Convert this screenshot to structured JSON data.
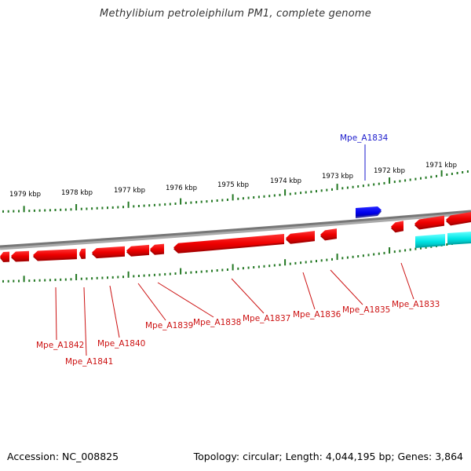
{
  "title": "Methylibium petroleiphilum PM1, complete genome",
  "footer": {
    "accession": "Accession: NC_008825",
    "summary": "Topology: circular; Length: 4,044,195 bp; Genes: 3,864"
  },
  "colors": {
    "forward_gene": "#0000ee",
    "reverse_gene": "#ee0000",
    "rna_feature": "#00e5e5",
    "ticks": "#227722",
    "backbone": "#888888",
    "label_forward": "#1a1acc",
    "label_reverse": "#cc1111"
  },
  "scale": {
    "ticks": [
      {
        "label": "1979 kbp"
      },
      {
        "label": "1978 kbp"
      },
      {
        "label": "1977 kbp"
      },
      {
        "label": "1976 kbp"
      },
      {
        "label": "1975 kbp"
      },
      {
        "label": "1974 kbp"
      },
      {
        "label": "1973 kbp"
      },
      {
        "label": "1972 kbp"
      },
      {
        "label": "1971 kbp"
      }
    ]
  },
  "genes": {
    "forward": [
      {
        "label": "Mpe_A1834"
      }
    ],
    "reverse": [
      {
        "label": "Mpe_A1833"
      },
      {
        "label": "Mpe_A1835"
      },
      {
        "label": "Mpe_A1836"
      },
      {
        "label": "Mpe_A1837"
      },
      {
        "label": "Mpe_A1838"
      },
      {
        "label": "Mpe_A1839"
      },
      {
        "label": "Mpe_A1840"
      },
      {
        "label": "Mpe_A1841"
      },
      {
        "label": "Mpe_A1842"
      }
    ]
  }
}
